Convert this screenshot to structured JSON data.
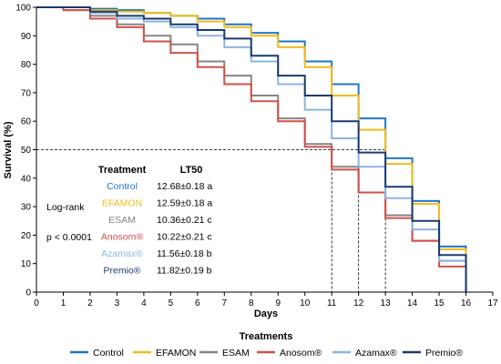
{
  "chart_data": {
    "type": "line",
    "step": true,
    "xlabel": "Days",
    "ylabel": "Survival (%)",
    "xlim": [
      0,
      17
    ],
    "ylim": [
      0,
      100
    ],
    "xticks": [
      0,
      1,
      2,
      3,
      4,
      5,
      6,
      7,
      8,
      9,
      10,
      11,
      12,
      13,
      14,
      15,
      16,
      17
    ],
    "yticks": [
      0,
      10,
      20,
      30,
      40,
      50,
      60,
      70,
      80,
      90,
      100
    ],
    "grid": false,
    "reference_lines": {
      "survival": 50,
      "days": [
        11,
        12,
        13
      ]
    },
    "x": [
      0,
      1,
      2,
      3,
      4,
      5,
      6,
      7,
      8,
      9,
      10,
      11,
      12,
      13,
      14,
      15,
      16
    ],
    "series": [
      {
        "name": "Control",
        "color": "#1f77c4",
        "values": [
          100,
          100,
          99.5,
          99,
          98,
          97,
          96,
          94,
          91,
          88,
          81,
          73,
          61,
          47,
          32,
          16,
          0
        ]
      },
      {
        "name": "EFAMON",
        "color": "#f2bc1b",
        "values": [
          100,
          100,
          99,
          98.5,
          98,
          97,
          95,
          93,
          90,
          86,
          79,
          69,
          57,
          45,
          31,
          15,
          0
        ]
      },
      {
        "name": "ESAM",
        "color": "#858585",
        "values": [
          100,
          99,
          97,
          94,
          90,
          87,
          81,
          76,
          69,
          61,
          52,
          44,
          35,
          27,
          18,
          11,
          0
        ]
      },
      {
        "name": "Anosom®",
        "color": "#d2504a",
        "values": [
          100,
          99,
          96,
          93,
          88,
          84,
          79,
          73,
          67,
          60,
          51,
          43,
          35,
          26,
          18,
          9,
          0
        ]
      },
      {
        "name": "Azamax®",
        "color": "#8db4e2",
        "values": [
          100,
          100,
          98,
          96,
          95,
          93,
          90,
          86,
          81,
          73,
          64,
          54,
          44,
          33,
          22,
          11,
          0
        ]
      },
      {
        "name": "Premio®",
        "color": "#1b3a6e",
        "values": [
          100,
          100,
          98.5,
          97,
          96,
          94,
          92,
          89,
          83,
          76,
          69,
          60,
          49,
          37,
          25,
          13,
          0
        ]
      }
    ],
    "table": {
      "header_treatment": "Treatment",
      "header_lt50": "LT50",
      "log_rank_label": "Log-rank",
      "p_value": "p < 0.0001",
      "rows": [
        {
          "treatment": "Control",
          "lt50": "12.68±0.18 a",
          "color": "#1f77c4"
        },
        {
          "treatment": "EFAMON",
          "lt50": "12.59±0.18 a",
          "color": "#f2bc1b"
        },
        {
          "treatment": "ESAM",
          "lt50": "10.36±0.21 c",
          "color": "#858585"
        },
        {
          "treatment": "Anosom®",
          "lt50": "10.22±0.21 c",
          "color": "#d2504a"
        },
        {
          "treatment": "Azamax®",
          "lt50": "11.56±0.18 b",
          "color": "#8db4e2"
        },
        {
          "treatment": "Premio®",
          "lt50": "11.82±0.19 b",
          "color": "#1b3a6e"
        }
      ]
    },
    "legend_title": "Treatments",
    "legend_position": "bottom"
  }
}
